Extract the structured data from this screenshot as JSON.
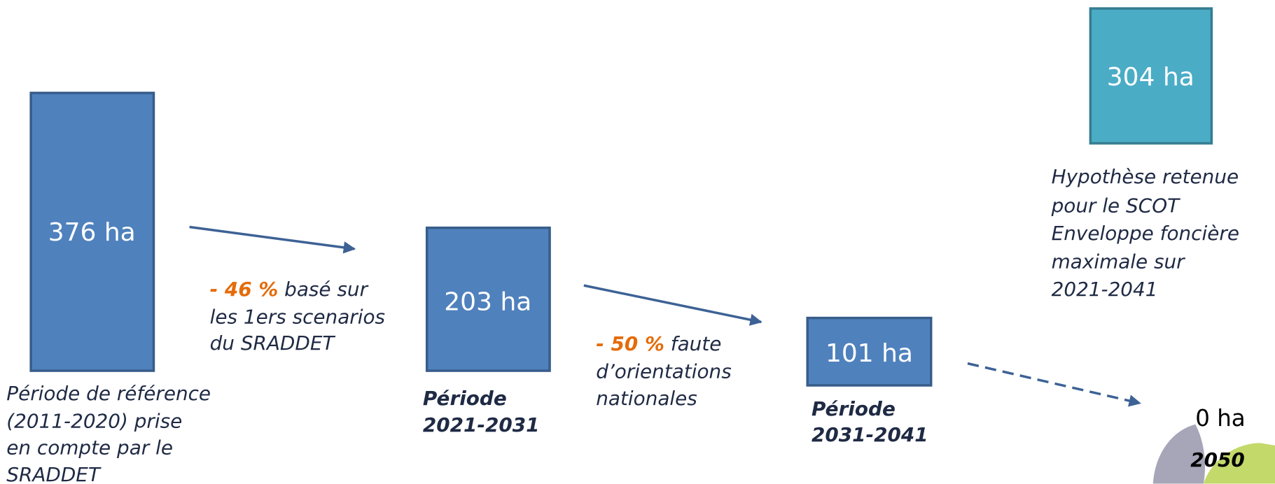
{
  "boxes": [
    {
      "label": "376 ha",
      "caption": [
        "Période de référence",
        "(2011-2020) prise",
        "en compte par le",
        "SRADDET"
      ]
    },
    {
      "label": "203 ha",
      "caption": [
        "Période",
        "2021-2031"
      ]
    },
    {
      "label": "101 ha",
      "caption": [
        "Période",
        "2031-2041"
      ]
    },
    {
      "label": "0 ha",
      "caption": [
        "2050"
      ]
    }
  ],
  "transitions": [
    {
      "rate": "- 46 %",
      "lines": [
        "basé sur",
        "les 1ers scenarios",
        "du SRADDET"
      ]
    },
    {
      "rate": "- 50 %",
      "lines": [
        "faute",
        "d’orientations",
        "nationales"
      ]
    }
  ],
  "hypothesis": {
    "label": "304 ha",
    "caption": [
      "Hypothèse retenue",
      "pour le SCOT",
      "Enveloppe foncière",
      "maximale sur",
      "2021-2041"
    ]
  }
}
